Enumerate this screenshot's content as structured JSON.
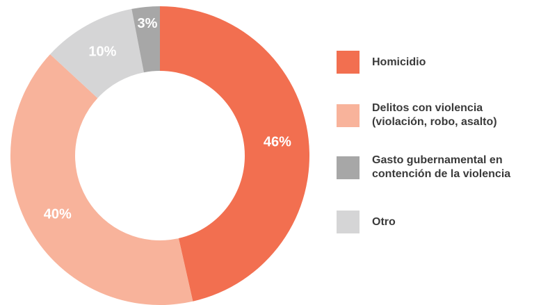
{
  "chart_data": {
    "type": "donut",
    "categories": [
      "Homicidio",
      "Delitos con violencia\n(violación, robo, asalto)",
      "Gasto gubernamental en\ncontención de la violencia",
      "Otro"
    ],
    "values": [
      46,
      40,
      3,
      10
    ],
    "value_labels": [
      "46%",
      "40%",
      "3%",
      "10%"
    ],
    "colors": [
      "#f26f50",
      "#f8b39b",
      "#a7a7a7",
      "#d5d5d6"
    ],
    "legend": "right"
  }
}
